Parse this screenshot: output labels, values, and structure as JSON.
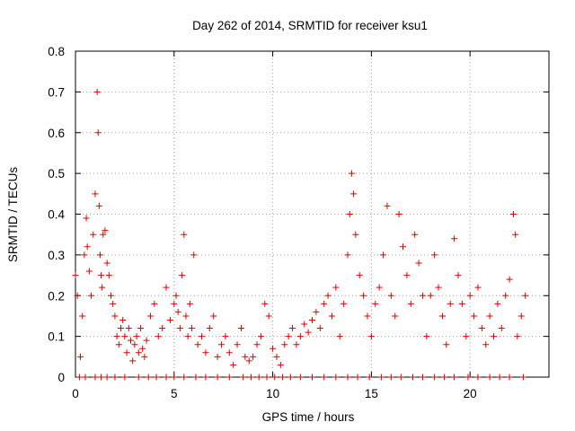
{
  "chart_data": {
    "type": "scatter",
    "title": "Day 262 of 2014, SRMTID for receiver ksu1",
    "xlabel": "GPS time / hours",
    "ylabel": "SRMTID / TECUs",
    "xlim": [
      0,
      24
    ],
    "ylim": [
      0,
      0.8
    ],
    "x_ticks": [
      0,
      5,
      10,
      15,
      20
    ],
    "x_tick_labels": [
      "0",
      "5",
      "10",
      "15",
      "20"
    ],
    "y_ticks": [
      0,
      0.1,
      0.2,
      0.3,
      0.4,
      0.5,
      0.6,
      0.7,
      0.8
    ],
    "y_tick_labels": [
      "0",
      "0.1",
      "0.2",
      "0.3",
      "0.4",
      "0.5",
      "0.6",
      "0.7",
      "0.8"
    ],
    "grid": true,
    "legend": "none",
    "marker": "plus",
    "marker_color": "#e00000",
    "series": [
      {
        "name": "SRMTID",
        "x": [
          0.0,
          0.1,
          0.25,
          0.35,
          0.45,
          0.55,
          0.6,
          0.7,
          0.8,
          0.9,
          1.0,
          1.1,
          1.15,
          1.2,
          1.25,
          1.3,
          1.35,
          1.4,
          1.5,
          1.6,
          1.7,
          1.8,
          1.9,
          2.0,
          2.1,
          2.2,
          2.3,
          2.4,
          2.5,
          2.6,
          2.7,
          2.8,
          2.9,
          3.0,
          3.1,
          3.2,
          3.3,
          3.4,
          3.5,
          3.6,
          3.8,
          4.0,
          4.2,
          4.4,
          4.6,
          4.8,
          5.0,
          5.1,
          5.2,
          5.3,
          5.4,
          5.5,
          5.6,
          5.7,
          5.8,
          5.9,
          6.0,
          6.2,
          6.4,
          6.6,
          6.8,
          7.0,
          7.2,
          7.4,
          7.6,
          7.8,
          8.0,
          8.2,
          8.4,
          8.6,
          8.8,
          9.0,
          9.2,
          9.4,
          9.6,
          9.8,
          10.0,
          10.2,
          10.4,
          10.6,
          10.8,
          11.0,
          11.2,
          11.4,
          11.6,
          11.8,
          12.0,
          12.2,
          12.4,
          12.6,
          12.8,
          13.0,
          13.2,
          13.4,
          13.6,
          13.8,
          13.9,
          14.0,
          14.1,
          14.2,
          14.4,
          14.6,
          14.8,
          15.0,
          15.2,
          15.4,
          15.6,
          15.8,
          16.0,
          16.2,
          16.4,
          16.6,
          16.8,
          17.0,
          17.2,
          17.4,
          17.6,
          17.8,
          18.0,
          18.2,
          18.4,
          18.6,
          18.8,
          19.0,
          19.2,
          19.4,
          19.6,
          19.8,
          20.0,
          20.2,
          20.4,
          20.6,
          20.8,
          21.0,
          21.2,
          21.4,
          21.6,
          21.8,
          22.0,
          22.2,
          22.3,
          22.4,
          22.6,
          22.8
        ],
        "y": [
          0.25,
          0.2,
          0.05,
          0.15,
          0.3,
          0.39,
          0.32,
          0.26,
          0.2,
          0.35,
          0.45,
          0.7,
          0.6,
          0.42,
          0.3,
          0.25,
          0.22,
          0.35,
          0.36,
          0.28,
          0.25,
          0.2,
          0.18,
          0.15,
          0.1,
          0.08,
          0.12,
          0.14,
          0.1,
          0.06,
          0.12,
          0.09,
          0.04,
          0.08,
          0.1,
          0.06,
          0.12,
          0.07,
          0.05,
          0.09,
          0.15,
          0.18,
          0.1,
          0.12,
          0.22,
          0.14,
          0.18,
          0.2,
          0.16,
          0.12,
          0.25,
          0.35,
          0.15,
          0.1,
          0.18,
          0.12,
          0.3,
          0.08,
          0.1,
          0.06,
          0.12,
          0.15,
          0.05,
          0.08,
          0.1,
          0.06,
          0.03,
          0.08,
          0.12,
          0.05,
          0.04,
          0.05,
          0.08,
          0.1,
          0.18,
          0.15,
          0.07,
          0.05,
          0.03,
          0.08,
          0.1,
          0.12,
          0.08,
          0.1,
          0.13,
          0.11,
          0.14,
          0.16,
          0.12,
          0.18,
          0.2,
          0.15,
          0.22,
          0.1,
          0.18,
          0.3,
          0.4,
          0.5,
          0.45,
          0.35,
          0.25,
          0.2,
          0.15,
          0.1,
          0.18,
          0.22,
          0.3,
          0.42,
          0.2,
          0.15,
          0.4,
          0.32,
          0.25,
          0.18,
          0.35,
          0.28,
          0.2,
          0.1,
          0.2,
          0.3,
          0.22,
          0.15,
          0.08,
          0.18,
          0.34,
          0.25,
          0.18,
          0.1,
          0.2,
          0.15,
          0.22,
          0.12,
          0.08,
          0.15,
          0.1,
          0.18,
          0.12,
          0.2,
          0.24,
          0.4,
          0.35,
          0.1,
          0.15,
          0.2
        ]
      }
    ],
    "zero_value_hours": [
      0.2,
      0.5,
      1.0,
      1.3,
      1.6,
      2.0,
      2.5,
      3.2,
      3.7,
      4.1,
      4.6,
      5.0,
      5.5,
      6.1,
      6.6,
      7.2,
      7.8,
      8.5,
      8.9,
      9.3,
      9.7,
      10.1,
      10.5,
      10.9,
      11.4,
      12.0,
      12.6,
      13.2,
      13.8,
      14.3,
      14.9,
      15.5,
      16.0,
      16.5,
      17.1,
      17.6,
      18.2,
      18.7,
      19.2,
      19.9,
      20.4,
      21.0,
      21.5,
      22.0,
      22.7
    ]
  }
}
